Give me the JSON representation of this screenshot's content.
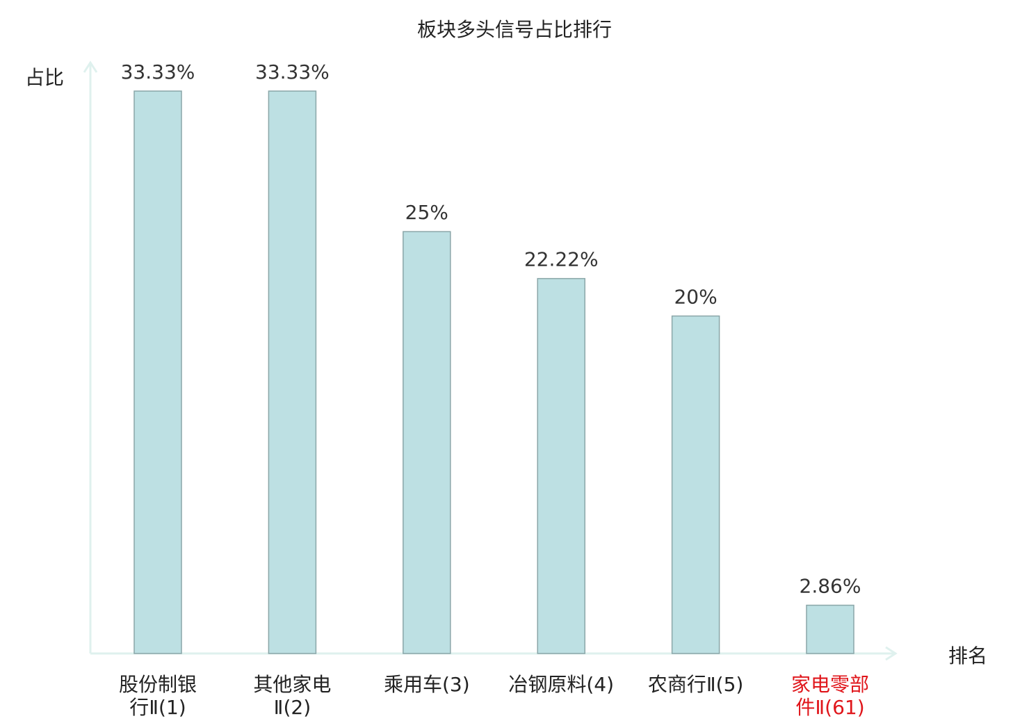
{
  "chart_data": {
    "type": "bar",
    "title": "板块多头信号占比排行",
    "xlabel": "排名",
    "ylabel": "占比",
    "categories": [
      [
        "股份制银",
        "行Ⅱ(1)"
      ],
      [
        "其他家电",
        "Ⅱ(2)"
      ],
      [
        "乘用车(3)"
      ],
      [
        "冶钢原料(4)"
      ],
      [
        "农商行Ⅱ(5)"
      ],
      [
        "家电零部",
        "件Ⅱ(61)"
      ]
    ],
    "values": [
      33.33,
      33.33,
      25,
      22.22,
      20,
      2.86
    ],
    "value_labels": [
      "33.33%",
      "33.33%",
      "25%",
      "22.22%",
      "20%",
      "2.86%"
    ],
    "highlighted_index": 5,
    "ylim": [
      0,
      33.33
    ],
    "grid": false,
    "colors": {
      "bar_fill": "#bde0e3",
      "bar_stroke": "#8aa6a8",
      "axis": "#dff1ee",
      "text": "#222222",
      "value_label": "#333333",
      "highlight": "#e0161b"
    }
  }
}
